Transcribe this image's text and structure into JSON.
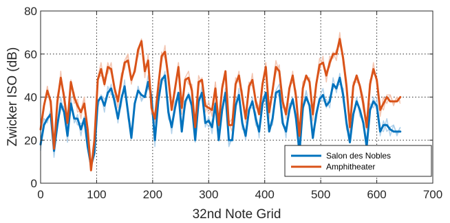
{
  "chart_data": {
    "type": "line",
    "xlabel": "32nd Note Grid",
    "ylabel": "Zwicker ISO (dB)",
    "xlim": [
      0,
      700
    ],
    "ylim": [
      0,
      80
    ],
    "xticks": [
      0,
      100,
      200,
      300,
      400,
      500,
      600,
      700
    ],
    "yticks": [
      0,
      20,
      40,
      60,
      80
    ],
    "grid": true,
    "legend_position": "bottom-right",
    "series": [
      {
        "name": "Salon des Nobles",
        "color": "#0072BD",
        "band_color": "#A9CCE8",
        "x": [
          0,
          6,
          12,
          18,
          24,
          30,
          36,
          42,
          48,
          54,
          60,
          66,
          72,
          78,
          84,
          90,
          96,
          102,
          108,
          114,
          120,
          126,
          132,
          138,
          144,
          150,
          156,
          162,
          168,
          174,
          180,
          186,
          192,
          198,
          204,
          210,
          216,
          222,
          228,
          234,
          240,
          246,
          252,
          258,
          264,
          270,
          276,
          282,
          288,
          294,
          300,
          306,
          312,
          318,
          324,
          330,
          336,
          342,
          348,
          354,
          360,
          366,
          372,
          378,
          384,
          390,
          396,
          402,
          408,
          414,
          420,
          426,
          432,
          438,
          444,
          450,
          456,
          462,
          468,
          474,
          480,
          486,
          492,
          498,
          504,
          510,
          516,
          522,
          528,
          534,
          540,
          546,
          552,
          558,
          564,
          570,
          576,
          582,
          588,
          594,
          600,
          606,
          612,
          618,
          624,
          630,
          636,
          642
        ],
        "y": [
          18,
          27,
          30,
          32,
          15,
          27,
          37,
          33,
          22,
          37,
          30,
          30,
          25,
          30,
          17,
          8,
          14,
          38,
          40,
          36,
          42,
          44,
          38,
          30,
          39,
          45,
          33,
          21,
          37,
          43,
          41,
          40,
          47,
          40,
          20,
          38,
          48,
          50,
          33,
          26,
          35,
          42,
          24,
          38,
          41,
          36,
          20,
          38,
          42,
          28,
          29,
          26,
          37,
          20,
          34,
          42,
          20,
          20,
          36,
          41,
          28,
          22,
          34,
          38,
          30,
          24,
          37,
          42,
          24,
          30,
          42,
          43,
          28,
          24,
          34,
          39,
          30,
          14,
          35,
          40,
          36,
          21,
          32,
          39,
          41,
          36,
          38,
          46,
          44,
          49,
          41,
          28,
          19,
          32,
          38,
          34,
          28,
          17,
          34,
          38,
          36,
          24,
          27,
          27,
          25,
          24,
          24,
          24
        ]
      },
      {
        "name": "Amphitheater",
        "color": "#D95319",
        "band_color": "#F2BFA8",
        "x": [
          0,
          6,
          12,
          18,
          24,
          30,
          36,
          42,
          48,
          54,
          60,
          66,
          72,
          78,
          84,
          90,
          96,
          102,
          108,
          114,
          120,
          126,
          132,
          138,
          144,
          150,
          156,
          162,
          168,
          174,
          180,
          186,
          192,
          198,
          204,
          210,
          216,
          222,
          228,
          234,
          240,
          246,
          252,
          258,
          264,
          270,
          276,
          282,
          288,
          294,
          300,
          306,
          312,
          318,
          324,
          330,
          336,
          342,
          348,
          354,
          360,
          366,
          372,
          378,
          384,
          390,
          396,
          402,
          408,
          414,
          420,
          426,
          432,
          438,
          444,
          450,
          456,
          462,
          468,
          474,
          480,
          486,
          492,
          498,
          504,
          510,
          516,
          522,
          528,
          534,
          540,
          546,
          552,
          558,
          564,
          570,
          576,
          582,
          588,
          594,
          600,
          606,
          612,
          618,
          624,
          630,
          636,
          642
        ],
        "y": [
          25,
          36,
          43,
          38,
          16,
          38,
          49,
          40,
          28,
          47,
          40,
          36,
          33,
          37,
          25,
          6,
          20,
          48,
          53,
          46,
          54,
          53,
          44,
          38,
          48,
          56,
          57,
          48,
          52,
          62,
          66,
          52,
          57,
          35,
          30,
          45,
          59,
          61,
          49,
          34,
          44,
          54,
          35,
          48,
          49,
          43,
          26,
          47,
          48,
          36,
          35,
          34,
          44,
          27,
          44,
          52,
          27,
          27,
          46,
          50,
          40,
          30,
          45,
          48,
          38,
          32,
          46,
          54,
          33,
          43,
          54,
          52,
          38,
          32,
          44,
          50,
          40,
          22,
          44,
          50,
          47,
          32,
          46,
          55,
          56,
          50,
          56,
          60,
          60,
          67,
          58,
          45,
          26,
          45,
          50,
          45,
          37,
          26,
          46,
          53,
          48,
          34,
          37,
          40,
          38,
          38,
          38,
          40
        ]
      }
    ]
  }
}
